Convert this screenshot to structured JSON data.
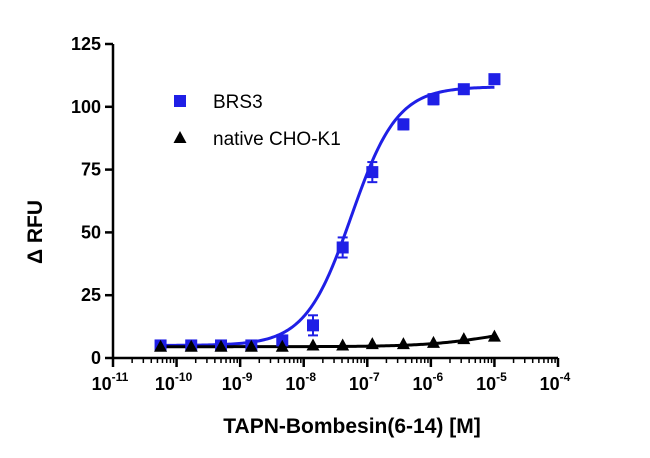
{
  "chart_data": {
    "type": "scatter",
    "xlabel": "TAPN-Bombesin(6-14) [M]",
    "ylabel": "Δ RFU",
    "x_scale": "log",
    "xlim": [
      1e-11,
      0.0001
    ],
    "ylim": [
      0,
      125
    ],
    "x_tick_exponents": [
      -11,
      -10,
      -9,
      -8,
      -7,
      -6,
      -5,
      -4
    ],
    "x_tick_base": "10",
    "y_ticks": [
      0,
      25,
      50,
      75,
      100,
      125
    ],
    "grid": false,
    "legend_position": "top-left",
    "series": [
      {
        "name": "BRS3",
        "color": "#1f1fe6",
        "marker": "square",
        "x": [
          5.6e-11,
          1.7e-10,
          5e-10,
          1.5e-09,
          4.6e-09,
          1.4e-08,
          4.1e-08,
          1.2e-07,
          3.7e-07,
          1.1e-06,
          3.3e-06,
          1e-05
        ],
        "y": [
          5,
          5,
          5,
          5,
          7,
          13,
          44,
          74,
          93,
          103,
          107,
          111
        ],
        "error": [
          1,
          1,
          1,
          1,
          1.5,
          4,
          4,
          4,
          2,
          2,
          1.5,
          1.5
        ]
      },
      {
        "name": "native CHO-K1",
        "color": "#000000",
        "marker": "triangle",
        "x": [
          5.6e-11,
          1.7e-10,
          5e-10,
          1.5e-09,
          4.6e-09,
          1.4e-08,
          4.1e-08,
          1.2e-07,
          3.7e-07,
          1.1e-06,
          3.3e-06,
          1e-05
        ],
        "y": [
          4.5,
          4.5,
          4.5,
          4.5,
          4.5,
          5,
          5,
          5.5,
          5.5,
          6,
          7.5,
          8.5
        ],
        "error": [
          0,
          0,
          0,
          0,
          0,
          0,
          0,
          0,
          0,
          0,
          0,
          0
        ]
      }
    ],
    "fits": [
      {
        "series": "BRS3",
        "bottom": 5,
        "top": 108,
        "log_ec50": -7.25,
        "hill": 1.2
      },
      {
        "series": "native CHO-K1",
        "bottom": 4.5,
        "top": 13,
        "log_ec50": -5.0,
        "hill": 0.8
      }
    ]
  }
}
